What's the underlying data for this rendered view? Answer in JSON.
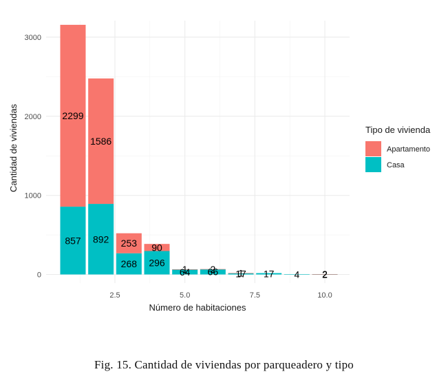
{
  "chart_data": {
    "type": "bar",
    "stacked": true,
    "xlabel": "Número de habitaciones",
    "ylabel": "Cantidad de viviendas",
    "xlim": [
      0.5,
      10.5
    ],
    "ylim": [
      0,
      3300
    ],
    "x_ticks": [
      2.5,
      5.0,
      7.5,
      10.0
    ],
    "x_tick_labels": [
      "2.5",
      "5.0",
      "7.5",
      "10.0"
    ],
    "y_ticks": [
      0,
      1000,
      2000,
      3000
    ],
    "y_tick_labels": [
      "0",
      "1000",
      "2000",
      "3000"
    ],
    "grid": true,
    "legend": {
      "title": "Tipo de vivienda",
      "position": "right"
    },
    "x": [
      1,
      2,
      3,
      4,
      5,
      6,
      7,
      8,
      9,
      10
    ],
    "series": [
      {
        "name": "Casa",
        "color": "#00BFC4",
        "values": [
          857,
          892,
          268,
          296,
          64,
          66,
          17,
          17,
          4,
          2
        ],
        "labels": [
          "857",
          "892",
          "268",
          "296",
          "64",
          "66",
          "17",
          "17",
          "4",
          "2"
        ]
      },
      {
        "name": "Apartamento",
        "color": "#F8766D",
        "values": [
          2299,
          1586,
          253,
          90,
          1,
          2,
          1,
          0,
          0,
          2
        ],
        "labels": [
          "2299",
          "1586",
          "253",
          "90",
          "1",
          "2",
          "1",
          "",
          "",
          "2"
        ]
      }
    ]
  },
  "caption": "Fig. 15.  Cantidad de viviendas por parqueadero y tipo"
}
